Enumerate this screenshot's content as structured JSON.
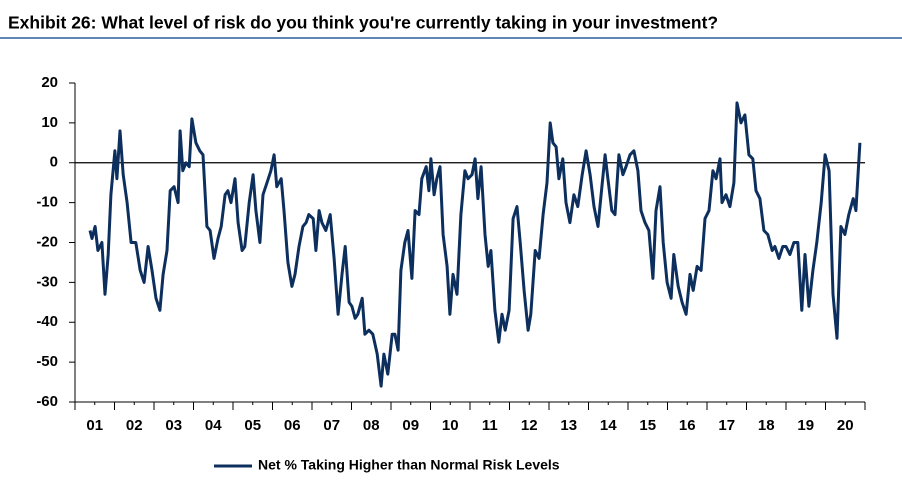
{
  "chart_data": {
    "type": "line",
    "title": "Exhibit 26: What level of risk do you think you're currently taking in your investment?",
    "x": [
      2001.38,
      2001.43,
      2001.51,
      2001.58,
      2001.68,
      2001.76,
      2001.84,
      2001.91,
      2002.01,
      2002.06,
      2002.14,
      2002.22,
      2002.32,
      2002.42,
      2002.54,
      2002.65,
      2002.75,
      2002.85,
      2002.95,
      2003.05,
      2003.15,
      2003.23,
      2003.33,
      2003.41,
      2003.51,
      2003.61,
      2003.66,
      2003.73,
      2003.81,
      2003.89,
      2003.96,
      2004.06,
      2004.16,
      2004.24,
      2004.34,
      2004.42,
      2004.52,
      2004.62,
      2004.7,
      2004.8,
      2004.87,
      2004.95,
      2005.05,
      2005.13,
      2005.23,
      2005.3,
      2005.41,
      2005.51,
      2005.58,
      2005.68,
      2005.76,
      2005.86,
      2005.96,
      2006.04,
      2006.11,
      2006.22,
      2006.29,
      2006.39,
      2006.49,
      2006.57,
      2006.67,
      2006.77,
      2006.85,
      2006.92,
      2007.03,
      2007.1,
      2007.18,
      2007.25,
      2007.35,
      2007.46,
      2007.56,
      2007.66,
      2007.76,
      2007.84,
      2007.94,
      2008.01,
      2008.09,
      2008.16,
      2008.27,
      2008.34,
      2008.44,
      2008.54,
      2008.65,
      2008.75,
      2008.82,
      2008.92,
      2009.03,
      2009.1,
      2009.18,
      2009.25,
      2009.35,
      2009.43,
      2009.53,
      2009.61,
      2009.71,
      2009.78,
      2009.89,
      2009.96,
      2010.01,
      2010.09,
      2010.16,
      2010.24,
      2010.32,
      2010.42,
      2010.49,
      2010.57,
      2010.67,
      2010.77,
      2010.87,
      2010.95,
      2011.05,
      2011.13,
      2011.2,
      2011.28,
      2011.38,
      2011.46,
      2011.53,
      2011.63,
      2011.73,
      2011.81,
      2011.89,
      2011.99,
      2012.09,
      2012.19,
      2012.27,
      2012.37,
      2012.47,
      2012.54,
      2012.65,
      2012.75,
      2012.85,
      2012.95,
      2013.03,
      2013.1,
      2013.18,
      2013.25,
      2013.35,
      2013.43,
      2013.53,
      2013.63,
      2013.73,
      2013.84,
      2013.94,
      2014.04,
      2014.14,
      2014.24,
      2014.34,
      2014.42,
      2014.49,
      2014.59,
      2014.67,
      2014.77,
      2014.87,
      2014.95,
      2015.05,
      2015.15,
      2015.25,
      2015.33,
      2015.43,
      2015.53,
      2015.63,
      2015.71,
      2015.81,
      2015.89,
      2015.99,
      2016.09,
      2016.16,
      2016.27,
      2016.37,
      2016.47,
      2016.57,
      2016.65,
      2016.75,
      2016.85,
      2016.95,
      2017.05,
      2017.15,
      2017.23,
      2017.33,
      2017.38,
      2017.48,
      2017.58,
      2017.68,
      2017.76,
      2017.86,
      2017.96,
      2018.06,
      2018.16,
      2018.24,
      2018.34,
      2018.44,
      2018.54,
      2018.65,
      2018.72,
      2018.82,
      2018.92,
      2019.0,
      2019.1,
      2019.2,
      2019.3,
      2019.4,
      2019.48,
      2019.58,
      2019.68,
      2019.78,
      2019.89,
      2019.99,
      2020.09,
      2020.19,
      2020.29,
      2020.39,
      2020.49,
      2020.59,
      2020.7,
      2020.77,
      2020.87
    ],
    "series": [
      {
        "name": "Net % Taking Higher than Normal Risk Levels",
        "color": "#0d2f5e",
        "values": [
          -17,
          -19,
          -16,
          -22,
          -20,
          -33,
          -23,
          -8,
          3,
          -4,
          8,
          -3,
          -10,
          -20,
          -20,
          -27,
          -30,
          -21,
          -27,
          -34,
          -37,
          -28,
          -22,
          -7,
          -6,
          -10,
          8,
          -2,
          0,
          -1,
          11,
          5,
          3,
          2,
          -16,
          -17,
          -24,
          -19,
          -16,
          -8,
          -7,
          -10,
          -4,
          -15,
          -22,
          -21,
          -10,
          -3,
          -12,
          -20,
          -8,
          -5,
          -2,
          2,
          -6,
          -4,
          -12,
          -25,
          -31,
          -28,
          -21,
          -16,
          -15,
          -13,
          -14,
          -22,
          -12,
          -15,
          -17,
          -13,
          -24,
          -38,
          -28,
          -21,
          -35,
          -36,
          -39,
          -38,
          -34,
          -43,
          -42,
          -43,
          -48,
          -56,
          -48,
          -53,
          -43,
          -43,
          -47,
          -27,
          -20,
          -17,
          -29,
          -12,
          -13,
          -4,
          -1,
          -7,
          1,
          -8,
          -4,
          -1,
          -18,
          -26,
          -38,
          -28,
          -33,
          -13,
          -2,
          -4,
          -3,
          1,
          -9,
          -1,
          -18,
          -26,
          -22,
          -37,
          -45,
          -38,
          -42,
          -37,
          -14,
          -11,
          -20,
          -32,
          -42,
          -38,
          -22,
          -24,
          -13,
          -5,
          10,
          5,
          4,
          -4,
          1,
          -10,
          -15,
          -8,
          -11,
          -3,
          3,
          -3,
          -11,
          -16,
          -6,
          2,
          -4,
          -12,
          -13,
          2,
          -3,
          -1,
          2,
          3,
          -2,
          -12,
          -15,
          -17,
          -29,
          -12,
          -6,
          -20,
          -30,
          -34,
          -23,
          -31,
          -35,
          -38,
          -28,
          -32,
          -26,
          -27,
          -14,
          -12,
          -2,
          -4,
          1,
          -10,
          -8,
          -11,
          -5,
          15,
          10,
          12,
          2,
          1,
          -7,
          -9,
          -17,
          -18,
          -22,
          -21,
          -24,
          -21,
          -21,
          -23,
          -20,
          -20,
          -37,
          -23,
          -36,
          -27,
          -20,
          -10,
          2,
          -2,
          -33,
          -44,
          -16,
          -18,
          -13,
          -9,
          -12,
          5
        ]
      }
    ],
    "xlim": [
      2001,
      2021
    ],
    "xticks": [
      {
        "value": 2001.5,
        "label": "01"
      },
      {
        "value": 2002.5,
        "label": "02"
      },
      {
        "value": 2003.5,
        "label": "03"
      },
      {
        "value": 2004.5,
        "label": "04"
      },
      {
        "value": 2005.5,
        "label": "05"
      },
      {
        "value": 2006.5,
        "label": "06"
      },
      {
        "value": 2007.5,
        "label": "07"
      },
      {
        "value": 2008.5,
        "label": "08"
      },
      {
        "value": 2009.5,
        "label": "09"
      },
      {
        "value": 2010.5,
        "label": "10"
      },
      {
        "value": 2011.5,
        "label": "11"
      },
      {
        "value": 2012.5,
        "label": "12"
      },
      {
        "value": 2013.5,
        "label": "13"
      },
      {
        "value": 2014.5,
        "label": "14"
      },
      {
        "value": 2015.5,
        "label": "15"
      },
      {
        "value": 2016.5,
        "label": "16"
      },
      {
        "value": 2017.5,
        "label": "17"
      },
      {
        "value": 2018.5,
        "label": "18"
      },
      {
        "value": 2019.5,
        "label": "19"
      },
      {
        "value": 2020.5,
        "label": "20"
      }
    ],
    "ylim": [
      -60,
      20
    ],
    "yticks": [
      -60,
      -50,
      -40,
      -30,
      -20,
      -10,
      0,
      10,
      20
    ],
    "zero_line": true,
    "legend": "bottom"
  }
}
